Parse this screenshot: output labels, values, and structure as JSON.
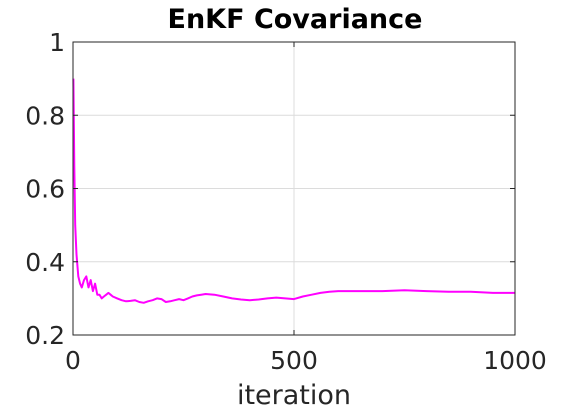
{
  "chart_data": {
    "type": "line",
    "title": "EnKF Covariance",
    "xlabel": "iteration",
    "ylabel": "",
    "xlim": [
      0,
      1000
    ],
    "ylim": [
      0.2,
      1
    ],
    "xticks": [
      0,
      500,
      1000
    ],
    "xtick_labels": [
      "0",
      "500",
      "1000"
    ],
    "yticks": [
      0.2,
      0.4,
      0.6,
      0.8,
      1
    ],
    "ytick_labels": [
      "0.2",
      "0.4",
      "0.6",
      "0.8",
      "1"
    ],
    "grid": true,
    "series": [
      {
        "color": "#ff00ff",
        "x": [
          1,
          3,
          5,
          8,
          12,
          16,
          20,
          25,
          30,
          35,
          40,
          45,
          50,
          55,
          60,
          65,
          70,
          75,
          80,
          85,
          90,
          100,
          110,
          120,
          130,
          140,
          150,
          160,
          170,
          180,
          190,
          200,
          210,
          220,
          230,
          240,
          250,
          260,
          270,
          280,
          290,
          300,
          320,
          340,
          360,
          380,
          400,
          420,
          440,
          460,
          480,
          500,
          520,
          540,
          560,
          580,
          600,
          650,
          700,
          750,
          800,
          850,
          900,
          950,
          1000
        ],
        "y": [
          0.9,
          0.66,
          0.5,
          0.42,
          0.36,
          0.34,
          0.33,
          0.35,
          0.36,
          0.33,
          0.35,
          0.32,
          0.34,
          0.31,
          0.31,
          0.3,
          0.305,
          0.31,
          0.315,
          0.31,
          0.305,
          0.3,
          0.295,
          0.292,
          0.293,
          0.295,
          0.29,
          0.288,
          0.292,
          0.295,
          0.3,
          0.298,
          0.29,
          0.292,
          0.295,
          0.298,
          0.295,
          0.3,
          0.305,
          0.308,
          0.31,
          0.312,
          0.31,
          0.305,
          0.3,
          0.297,
          0.295,
          0.297,
          0.3,
          0.302,
          0.3,
          0.298,
          0.305,
          0.31,
          0.315,
          0.318,
          0.32,
          0.32,
          0.32,
          0.322,
          0.32,
          0.318,
          0.318,
          0.315,
          0.315
        ]
      }
    ]
  }
}
